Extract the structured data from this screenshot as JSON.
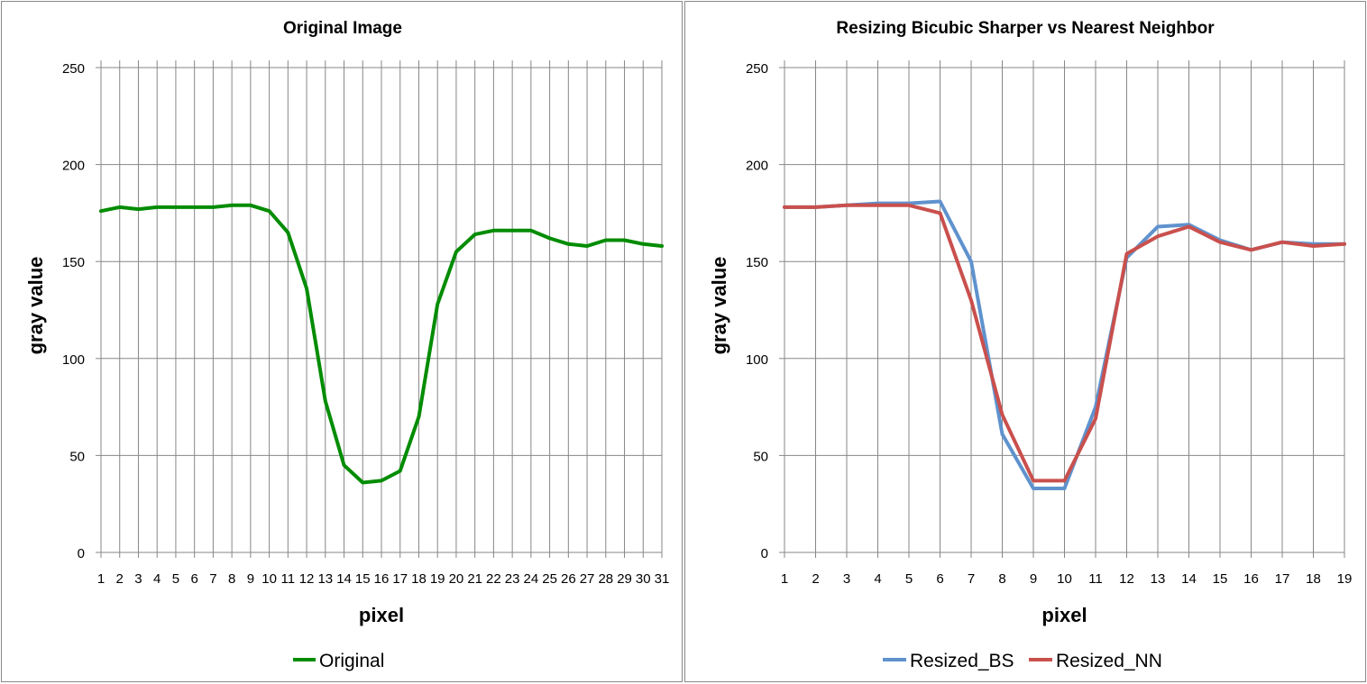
{
  "chart_data": [
    {
      "type": "line",
      "title": "Original Image",
      "xlabel": "pixel",
      "ylabel": "gray value",
      "ylim": [
        0,
        250
      ],
      "yticks": [
        0,
        50,
        100,
        150,
        200,
        250
      ],
      "categories": [
        "1",
        "2",
        "3",
        "4",
        "5",
        "6",
        "7",
        "8",
        "9",
        "10",
        "11",
        "12",
        "13",
        "14",
        "15",
        "16",
        "17",
        "18",
        "19",
        "20",
        "21",
        "22",
        "23",
        "24",
        "25",
        "26",
        "27",
        "28",
        "29",
        "30",
        "31"
      ],
      "grid": "vertical and horizontal",
      "legend_position": "bottom",
      "series": [
        {
          "name": "Original",
          "color": "#008c00",
          "values": [
            176,
            178,
            177,
            178,
            178,
            178,
            178,
            179,
            179,
            176,
            165,
            136,
            78,
            45,
            36,
            37,
            42,
            70,
            128,
            155,
            164,
            166,
            166,
            166,
            162,
            159,
            158,
            161,
            161,
            159,
            158
          ]
        }
      ]
    },
    {
      "type": "line",
      "title": "Resizing Bicubic Sharper vs Nearest Neighbor",
      "xlabel": "pixel",
      "ylabel": "gray value",
      "ylim": [
        0,
        250
      ],
      "yticks": [
        0,
        50,
        100,
        150,
        200,
        250
      ],
      "categories": [
        "1",
        "2",
        "3",
        "4",
        "5",
        "6",
        "7",
        "8",
        "9",
        "10",
        "11",
        "12",
        "13",
        "14",
        "15",
        "16",
        "17",
        "18",
        "19"
      ],
      "grid": "vertical and horizontal",
      "legend_position": "bottom",
      "series": [
        {
          "name": "Resized_BS",
          "color": "#5f92cd",
          "values": [
            178,
            178,
            179,
            180,
            180,
            181,
            150,
            61,
            33,
            33,
            75,
            152,
            168,
            169,
            161,
            156,
            160,
            159,
            159
          ]
        },
        {
          "name": "Resized_NN",
          "color": "#c9504d",
          "values": [
            178,
            178,
            179,
            179,
            179,
            175,
            130,
            71,
            37,
            37,
            69,
            154,
            163,
            168,
            160,
            156,
            160,
            158,
            159
          ]
        }
      ]
    }
  ]
}
